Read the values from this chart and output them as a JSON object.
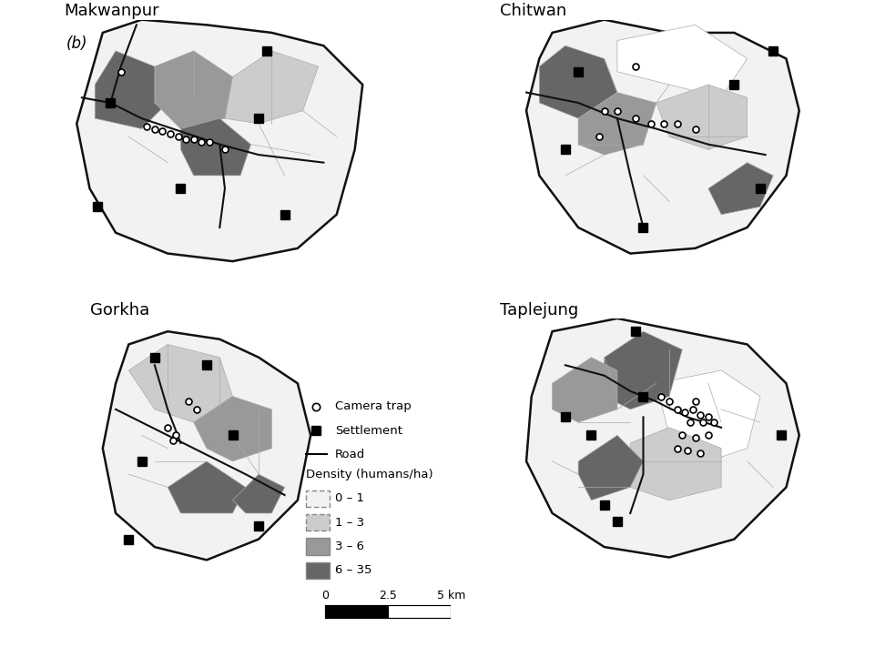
{
  "title_label": "(b)",
  "districts": [
    "Makwanpur",
    "Chitwan",
    "Gorkha",
    "Taplejung"
  ],
  "colors": {
    "density_0_1": "#f2f2f2",
    "density_1_3": "#cccccc",
    "density_3_6": "#999999",
    "density_6_35": "#666666",
    "background": "white",
    "border": "#111111",
    "road": "#111111",
    "subregion_border": "#aaaaaa"
  },
  "legend": {
    "camera_trap": "Camera trap",
    "settlement": "Settlement",
    "road": "Road",
    "density_label": "Density (humans/ha)",
    "density_0_1": "0 – 1",
    "density_1_3": "1 – 3",
    "density_3_6": "3 – 6",
    "density_6_35": "6 – 35"
  }
}
